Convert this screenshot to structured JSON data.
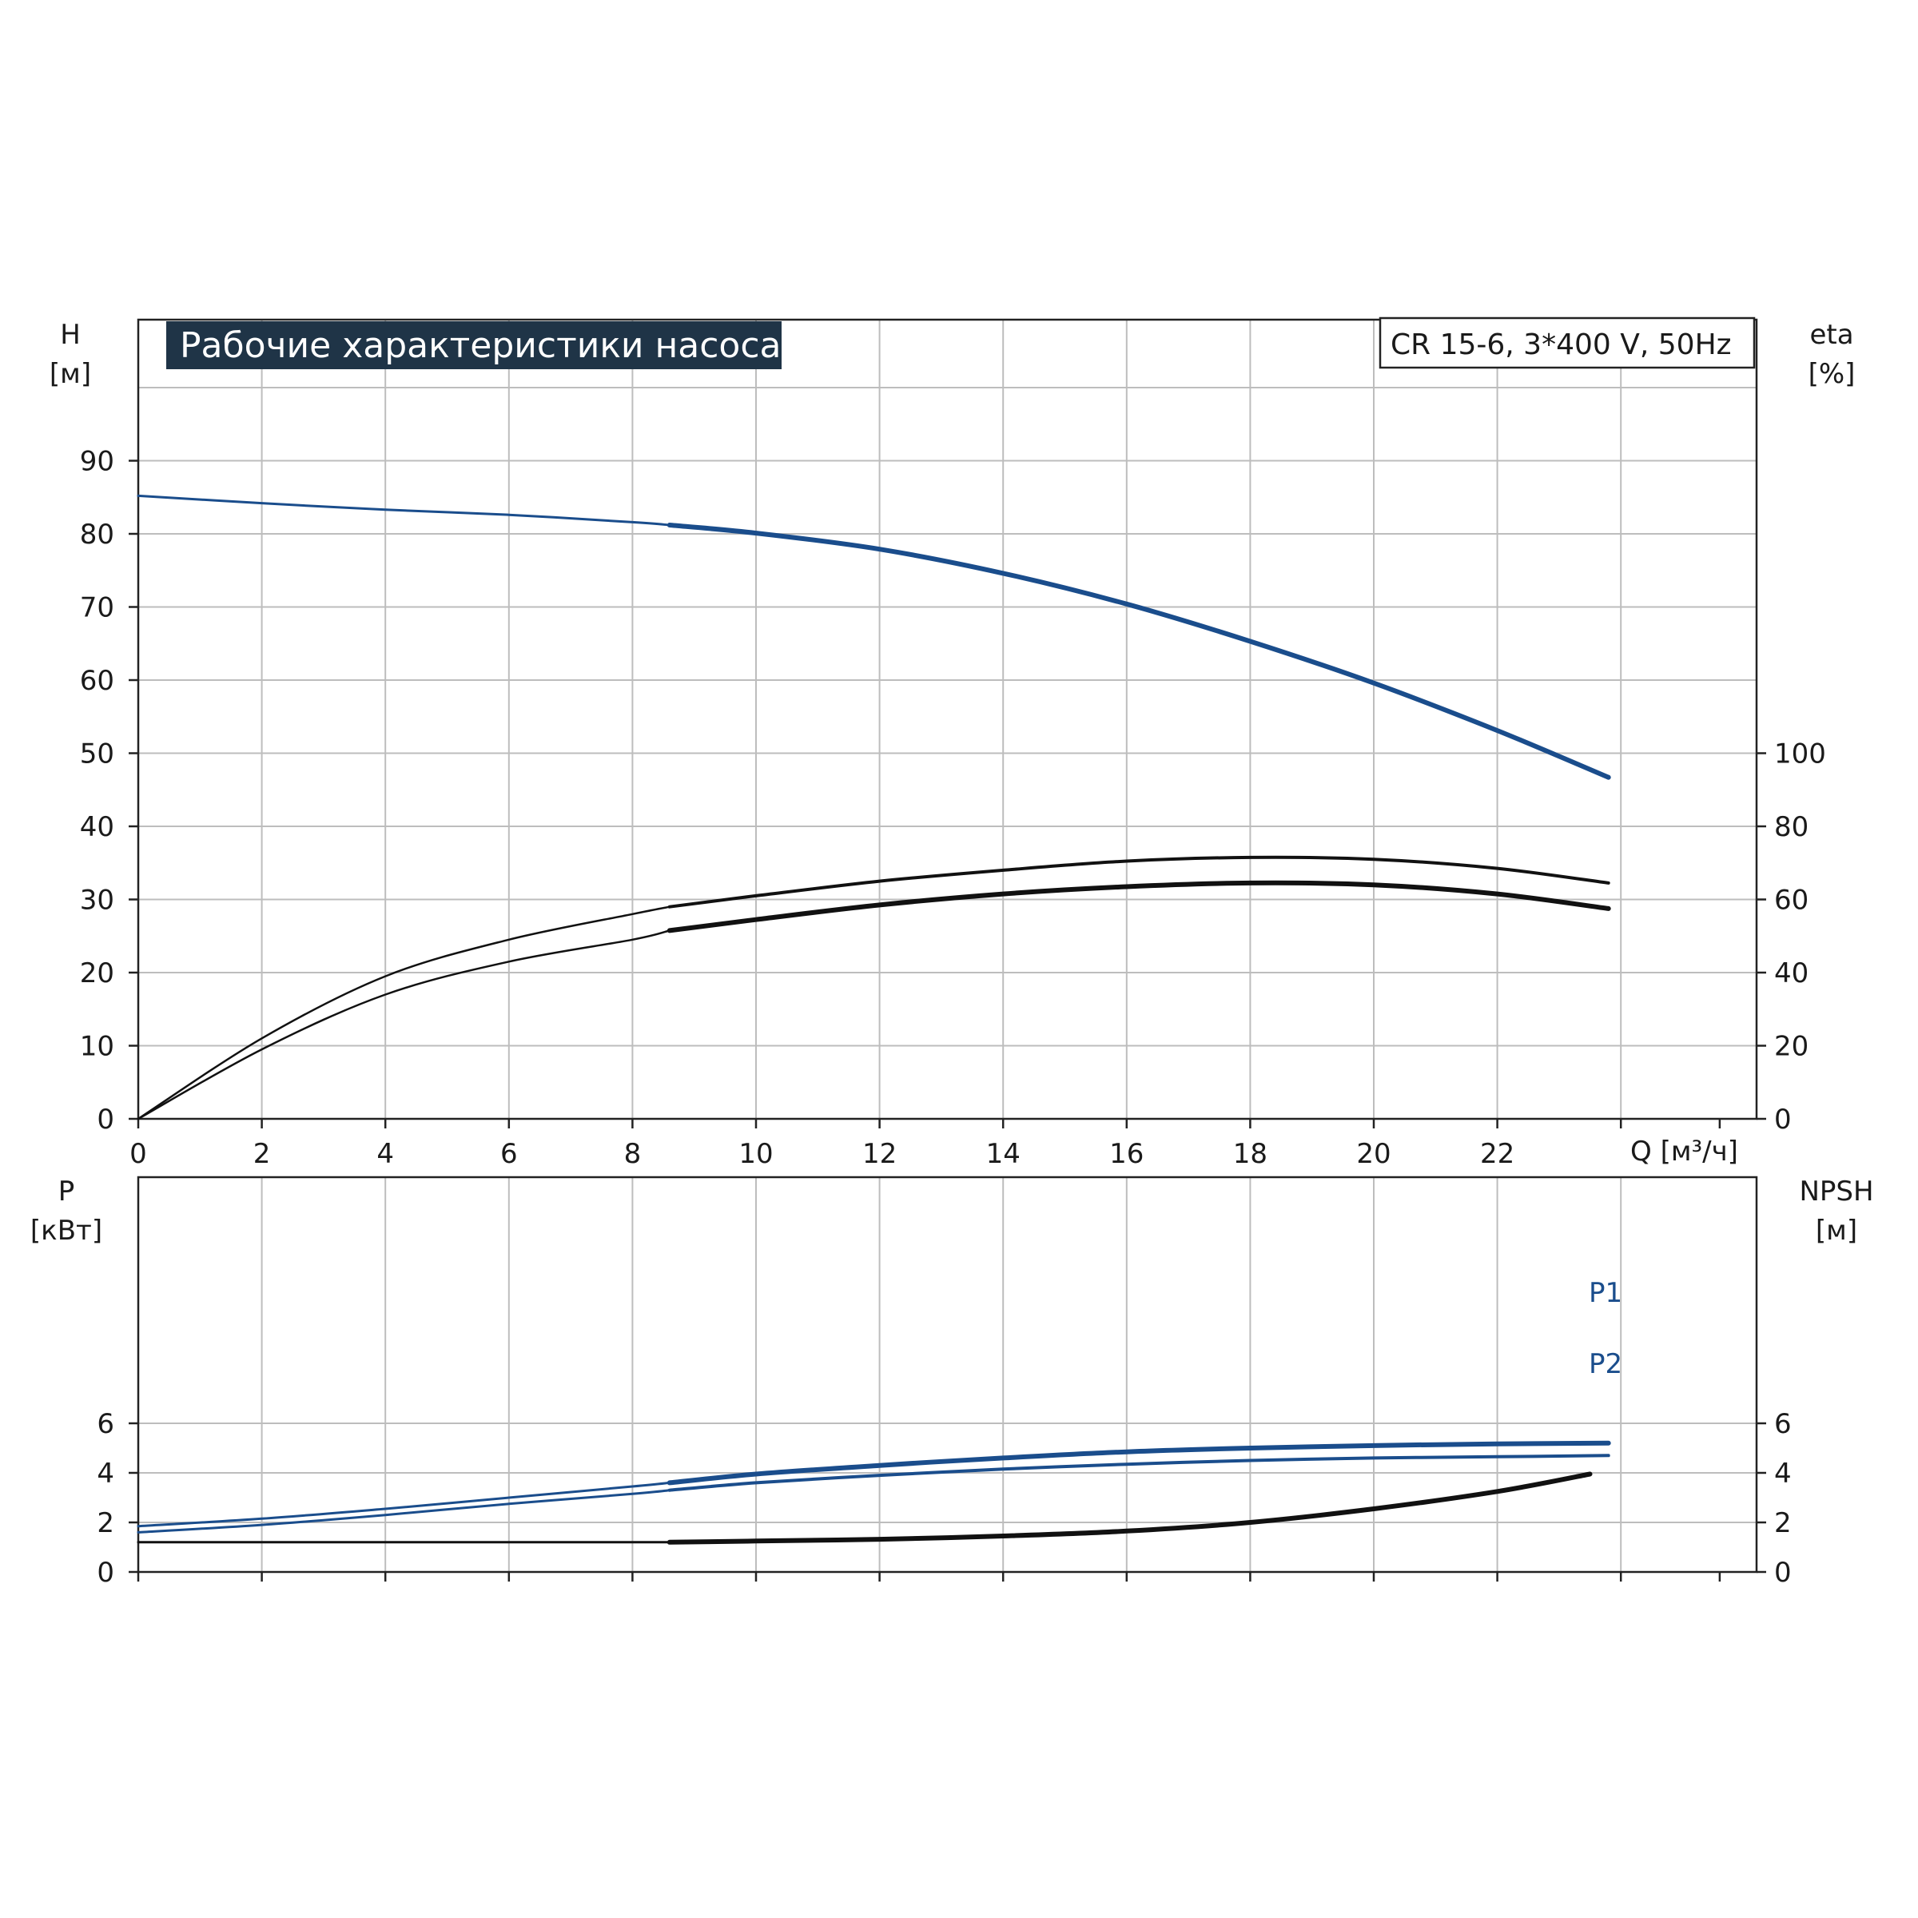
{
  "chart_data": [
    {
      "type": "line",
      "title": "Рабочие характеристики насоса",
      "model": "CR 15-6, 3*400 V, 50Hz",
      "x_axis": {
        "label": "Q [м³/ч]",
        "range": [
          0,
          26
        ],
        "ticks": [
          "0",
          "2",
          "4",
          "6",
          "8",
          "10",
          "12",
          "14",
          "16",
          "18",
          "20",
          "22"
        ]
      },
      "y_left": {
        "label_top": "H",
        "label_bottom": "[м]",
        "range": [
          0,
          100
        ],
        "ticks": [
          "0",
          "10",
          "20",
          "30",
          "40",
          "50",
          "60",
          "70",
          "80",
          "90"
        ]
      },
      "y_right": {
        "label_top": "eta",
        "label_bottom": "[%]",
        "range": [
          -80,
          165
        ],
        "ticks": [
          "0",
          "20",
          "40",
          "60",
          "80",
          "100"
        ]
      },
      "grid": true,
      "series": [
        {
          "name": "",
          "axis": "left",
          "color": "#1a4d8c",
          "x": [
            0,
            2,
            4,
            6,
            8,
            8.6,
            10,
            12,
            14,
            16,
            18,
            20,
            22,
            23.8
          ],
          "y": [
            85.2,
            84.2,
            83.3,
            82.6,
            81.6,
            81.2,
            80.1,
            77.9,
            74.6,
            70.4,
            65.3,
            59.6,
            53.1,
            46.7
          ]
        },
        {
          "name": "",
          "axis": "right",
          "color": "#111111",
          "x": [
            0,
            2,
            4,
            6,
            8,
            8.6,
            10,
            12,
            14,
            16,
            18,
            20,
            22,
            23.8
          ],
          "y": [
            0,
            22,
            39,
            49,
            56,
            58,
            61,
            65,
            68,
            70.5,
            71.5,
            71,
            68.5,
            64.5
          ]
        },
        {
          "name": "",
          "axis": "right",
          "color": "#111111",
          "x": [
            0,
            2,
            4,
            6,
            8,
            8.6,
            10,
            12,
            14,
            16,
            18,
            20,
            22,
            23.8
          ],
          "y": [
            0,
            19,
            34,
            43,
            49,
            51.5,
            54.5,
            58.5,
            61.5,
            63.5,
            64.5,
            64,
            61.5,
            57.5
          ]
        }
      ]
    },
    {
      "type": "line",
      "x_axis": {
        "range": [
          0,
          26
        ]
      },
      "y_left": {
        "label_top": "P",
        "label_bottom": "[кВт]",
        "range": [
          0,
          8
        ],
        "ticks": [
          "0",
          "2",
          "4",
          "6"
        ]
      },
      "y_right": {
        "label_top": "NPSH",
        "label_bottom": "[м]",
        "range": [
          0,
          8
        ],
        "ticks": [
          "0",
          "2",
          "4",
          "6"
        ]
      },
      "grid": true,
      "series": [
        {
          "name": "P1",
          "axis": "left",
          "color": "#1a4d8c",
          "x": [
            0,
            2,
            4,
            6,
            8,
            8.6,
            10,
            12,
            14,
            16,
            18,
            20,
            22,
            23.8
          ],
          "y": [
            1.85,
            2.15,
            2.55,
            3.0,
            3.45,
            3.6,
            3.95,
            4.3,
            4.6,
            4.85,
            5.0,
            5.1,
            5.17,
            5.2
          ]
        },
        {
          "name": "P2",
          "axis": "left",
          "color": "#1a4d8c",
          "x": [
            0,
            2,
            4,
            6,
            8,
            8.6,
            10,
            12,
            14,
            16,
            18,
            20,
            22,
            23.8
          ],
          "y": [
            1.6,
            1.9,
            2.3,
            2.75,
            3.15,
            3.3,
            3.6,
            3.9,
            4.15,
            4.35,
            4.5,
            4.6,
            4.65,
            4.7
          ]
        },
        {
          "name": "",
          "axis": "right",
          "color": "#111111",
          "x": [
            0,
            4,
            8.6,
            10,
            12,
            14,
            16,
            18,
            20,
            22,
            23.5
          ],
          "y": [
            1.2,
            1.2,
            1.2,
            1.25,
            1.32,
            1.45,
            1.65,
            2.0,
            2.55,
            3.25,
            3.95
          ]
        }
      ]
    }
  ]
}
